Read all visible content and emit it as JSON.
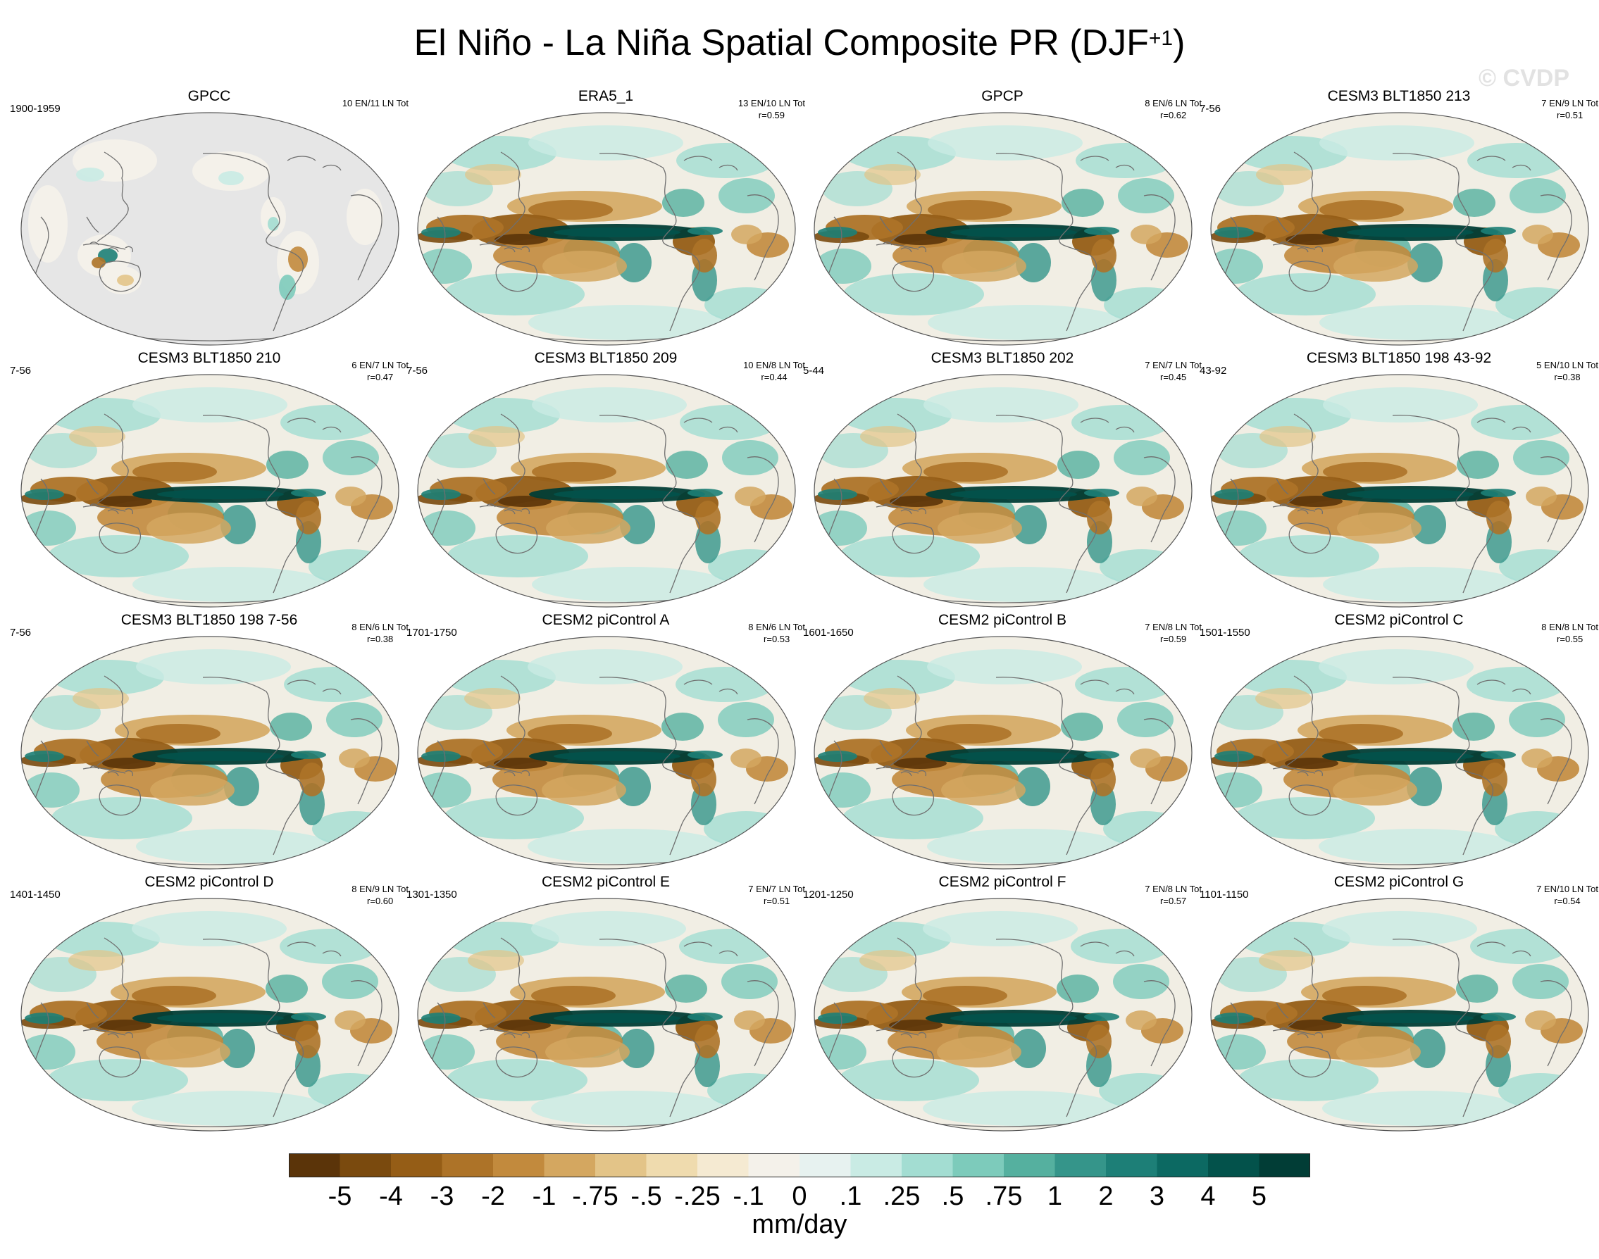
{
  "title": {
    "main": "El Niño - La Niña Spatial Composite PR (DJF",
    "superscript": "+1",
    "close": ")"
  },
  "watermark": "© CVDP",
  "chart_data": {
    "type": "heatmap",
    "title": "El Niño - La Niña Spatial Composite PR (DJF+1)",
    "units": "mm/day",
    "colorbar_labels": [
      "-5",
      "-4",
      "-3",
      "-2",
      "-1",
      "-.75",
      "-.5",
      "-.25",
      "-.1",
      "0",
      ".1",
      ".25",
      ".5",
      ".75",
      "1",
      "2",
      "3",
      "4",
      "5"
    ],
    "colorbar_colors": [
      "#5b3409",
      "#7a4a0e",
      "#955d16",
      "#ad7328",
      "#c28a3d",
      "#d4a760",
      "#e3c488",
      "#efdbae",
      "#f5ead2",
      "#f4f1ea",
      "#e7f2f0",
      "#c9ebe4",
      "#a3ddd2",
      "#7dcbbb",
      "#55b09f",
      "#35958a",
      "#1d7f77",
      "#0c6962",
      "#03524b",
      "#013d36"
    ],
    "panels": [
      {
        "name": "GPCC",
        "period": "1900-1959",
        "counts": "10 EN/11 LN Tot",
        "r": "",
        "land_only": true
      },
      {
        "name": "ERA5_1",
        "period": "",
        "counts": "13 EN/10 LN Tot",
        "r": "r=0.59",
        "land_only": false
      },
      {
        "name": "GPCP",
        "period": "",
        "counts": "8 EN/6 LN Tot",
        "r": "r=0.62",
        "land_only": false
      },
      {
        "name": "CESM3 BLT1850 213",
        "period": "7-56",
        "counts": "7 EN/9 LN Tot",
        "r": "r=0.51",
        "land_only": false
      },
      {
        "name": "CESM3 BLT1850 210",
        "period": "7-56",
        "counts": "6 EN/7 LN Tot",
        "r": "r=0.47",
        "land_only": false
      },
      {
        "name": "CESM3 BLT1850 209",
        "period": "7-56",
        "counts": "10 EN/8 LN Tot",
        "r": "r=0.44",
        "land_only": false
      },
      {
        "name": "CESM3 BLT1850 202",
        "period": "5-44",
        "counts": "7 EN/7 LN Tot",
        "r": "r=0.45",
        "land_only": false
      },
      {
        "name": "CESM3 BLT1850 198 43-92",
        "period": "43-92",
        "counts": "5 EN/10 LN Tot",
        "r": "r=0.38",
        "land_only": false
      },
      {
        "name": "CESM3 BLT1850 198 7-56",
        "period": "7-56",
        "counts": "8 EN/6 LN Tot",
        "r": "r=0.38",
        "land_only": false
      },
      {
        "name": "CESM2 piControl A",
        "period": "1701-1750",
        "counts": "8 EN/6 LN Tot",
        "r": "r=0.53",
        "land_only": false
      },
      {
        "name": "CESM2 piControl B",
        "period": "1601-1650",
        "counts": "7 EN/8 LN Tot",
        "r": "r=0.59",
        "land_only": false
      },
      {
        "name": "CESM2 piControl C",
        "period": "1501-1550",
        "counts": "8 EN/8 LN Tot",
        "r": "r=0.55",
        "land_only": false
      },
      {
        "name": "CESM2 piControl D",
        "period": "1401-1450",
        "counts": "8 EN/9 LN Tot",
        "r": "r=0.60",
        "land_only": false
      },
      {
        "name": "CESM2 piControl E",
        "period": "1301-1350",
        "counts": "7 EN/7 LN Tot",
        "r": "r=0.51",
        "land_only": false
      },
      {
        "name": "CESM2 piControl F",
        "period": "1201-1250",
        "counts": "7 EN/8 LN Tot",
        "r": "r=0.57",
        "land_only": false
      },
      {
        "name": "CESM2 piControl G",
        "period": "1101-1150",
        "counts": "7 EN/10 LN Tot",
        "r": "r=0.54",
        "land_only": false
      }
    ]
  }
}
